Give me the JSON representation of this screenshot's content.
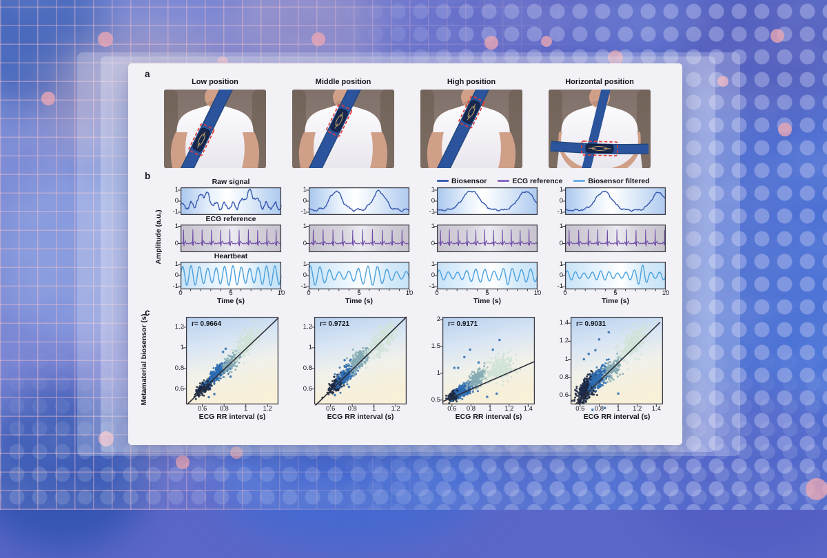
{
  "figure": {
    "panel_a": {
      "label": "a",
      "photos": [
        {
          "title": "Low position",
          "belt": "sash",
          "sensor_t": 0.63
        },
        {
          "title": "Middle position",
          "belt": "sash",
          "sensor_t": 0.4
        },
        {
          "title": "High position",
          "belt": "sash",
          "sensor_t": 0.3
        },
        {
          "title": "Horizontal position",
          "belt": "lap",
          "sensor_t": 0.5
        }
      ]
    },
    "panel_b": {
      "label": "b"
    },
    "panel_c": {
      "label": "c"
    }
  },
  "chart_data": {
    "signal_panels": {
      "type": "line",
      "xlabel": "Time (s)",
      "ylabel": "Amplitude (a.u.)",
      "xticks": [
        "0",
        "5",
        "10"
      ],
      "xtick_vals": [
        0,
        5,
        10
      ],
      "x_range": [
        0,
        10
      ],
      "legend": [
        {
          "name": "Biosensor",
          "color": "#3f5db4"
        },
        {
          "name": "ECG reference",
          "color": "#8a68c0"
        },
        {
          "name": "Biosensor filtered",
          "color": "#69b0e0"
        }
      ],
      "rows": [
        {
          "title": "Raw signal",
          "line_color": "#3456ae",
          "bg": "raw",
          "yticks": [
            "1",
            "0",
            "-1"
          ],
          "ytick_vals": [
            1,
            0,
            -1
          ],
          "y_range": [
            -1.25,
            1.25
          ]
        },
        {
          "title": "ECG reference",
          "line_color": "#6b4aa6",
          "bg": "ecg",
          "yticks": [
            "1",
            "0"
          ],
          "ytick_vals": [
            1,
            0
          ],
          "y_range": [
            -0.5,
            1.1
          ]
        },
        {
          "title": "Heartbeat",
          "line_color": "#4aa0dc",
          "bg": "hb",
          "yticks": [
            "1",
            "0",
            "-1"
          ],
          "ytick_vals": [
            1,
            0,
            -1
          ],
          "y_range": [
            -1.25,
            1.25
          ]
        }
      ],
      "columns": [
        {
          "name": "Low position",
          "raw": {
            "base": -0.45,
            "bumps": [
              {
                "t": 2.35,
                "a": 1.15,
                "w": 0.5
              },
              {
                "t": 6.9,
                "a": 1.2,
                "w": 0.55
              }
            ],
            "ripple": {
              "f": 1.2,
              "a": 0.3,
              "ph": 0
            },
            "noise": 0.12
          },
          "ecg": {
            "rr": 0.92,
            "t0": 0.3,
            "r_amp": 0.8
          },
          "hb": {
            "f": 1.2,
            "a0": 0.78,
            "am": 0.12,
            "mf": 0.25,
            "mp": 0,
            "ph": 0
          }
        },
        {
          "name": "Middle position",
          "raw": {
            "base": -0.8,
            "bumps": [
              {
                "t": 2.7,
                "a": 1.7,
                "w": 0.6
              },
              {
                "t": 7.0,
                "a": 1.7,
                "w": 0.62
              }
            ],
            "ripple": {
              "f": 1.05,
              "a": 0.1,
              "ph": 0.5
            },
            "noise": 0.05
          },
          "ecg": {
            "rr": 0.98,
            "t0": 0.45,
            "r_amp": 0.8
          },
          "hb": {
            "f": 1.05,
            "a0": 0.6,
            "am": 0.28,
            "mf": 0.17,
            "mp": 1.2,
            "ph": 0.5
          }
        },
        {
          "name": "High position",
          "raw": {
            "base": -0.82,
            "bumps": [
              {
                "t": 3.4,
                "a": 1.75,
                "w": 0.85
              },
              {
                "t": 8.85,
                "a": 1.7,
                "w": 0.8
              }
            ],
            "ripple": {
              "f": 1.1,
              "a": 0.05,
              "ph": 0
            },
            "noise": 0.05
          },
          "ecg": {
            "rr": 0.88,
            "t0": 0.35,
            "r_amp": 0.8
          },
          "hb": {
            "f": 1.1,
            "a0": 0.45,
            "am": 0.15,
            "mf": 0.2,
            "mp": 2.6,
            "ph": 0,
            "burst": {
              "t": 7.0,
              "a": 0.5,
              "w": 0.45
            }
          }
        },
        {
          "name": "Horizontal position",
          "raw": {
            "base": -0.82,
            "bumps": [
              {
                "t": 3.85,
                "a": 1.7,
                "w": 0.8
              },
              {
                "t": 9.3,
                "a": 1.6,
                "w": 0.7
              }
            ],
            "ripple": {
              "f": 1.0,
              "a": 0.06,
              "ph": 1.0
            },
            "noise": 0.05
          },
          "ecg": {
            "rr": 0.95,
            "t0": 0.4,
            "r_amp": 0.8
          },
          "hb": {
            "f": 1.2,
            "a0": 0.33,
            "am": 0.1,
            "mf": 0.3,
            "mp": 1.0,
            "ph": 0,
            "burst": {
              "t": 7.7,
              "a": 0.6,
              "w": 0.4
            }
          }
        }
      ]
    },
    "scatter_panels": {
      "type": "scatter",
      "xlabel": "ECG RR interval (s)",
      "ylabel": "Metamaterial biosensor (s)",
      "cluster_colors": [
        "#1b2a47",
        "#2e6cb0",
        "#85abb4",
        "#cfe2d6"
      ],
      "line_color": "#2e2e38",
      "plots": [
        {
          "r_text": "r= 0.9664",
          "r": 0.9664,
          "seed": 101,
          "x_range": [
            0.45,
            1.3
          ],
          "y_range": [
            0.45,
            1.3
          ],
          "xticks": [
            "0.6",
            "0.8",
            "1",
            "1.2"
          ],
          "xtick_vals": [
            0.6,
            0.8,
            1,
            1.2
          ],
          "yticks": [
            "0.6",
            "0.8",
            "1",
            "1.2"
          ],
          "ytick_vals": [
            0.6,
            0.8,
            1,
            1.2
          ],
          "line": [
            [
              0.46,
              0.45
            ],
            [
              1.3,
              1.29
            ]
          ],
          "clusters": [
            {
              "cx": 0.63,
              "cy": 0.63,
              "sx": 0.042,
              "sy": 0.028,
              "k": 0.75,
              "n": 210
            },
            {
              "cx": 0.755,
              "cy": 0.77,
              "sx": 0.05,
              "sy": 0.038,
              "k": 0.7,
              "n": 240
            },
            {
              "cx": 0.865,
              "cy": 0.86,
              "sx": 0.042,
              "sy": 0.038,
              "k": 0.7,
              "n": 150
            },
            {
              "cx": 1.005,
              "cy": 1.04,
              "sx": 0.055,
              "sy": 0.055,
              "k": 0.75,
              "n": 210
            }
          ],
          "outliers": [
            [
              0.79,
              0.96
            ],
            [
              0.815,
              0.99
            ],
            [
              0.66,
              0.52
            ],
            [
              0.71,
              0.55
            ],
            [
              0.86,
              0.72
            ]
          ]
        },
        {
          "r_text": "r= 0.9721",
          "r": 0.9721,
          "seed": 102,
          "x_range": [
            0.45,
            1.3
          ],
          "y_range": [
            0.45,
            1.3
          ],
          "xticks": [
            "0.6",
            "0.8",
            "1",
            "1.2"
          ],
          "xtick_vals": [
            0.6,
            0.8,
            1,
            1.2
          ],
          "yticks": [
            "0.6",
            "0.8",
            "1",
            "1.2"
          ],
          "ytick_vals": [
            0.6,
            0.8,
            1,
            1.2
          ],
          "line": [
            [
              0.46,
              0.44
            ],
            [
              1.3,
              1.3
            ]
          ],
          "clusters": [
            {
              "cx": 0.665,
              "cy": 0.655,
              "sx": 0.038,
              "sy": 0.03,
              "k": 0.8,
              "n": 300
            },
            {
              "cx": 0.745,
              "cy": 0.735,
              "sx": 0.045,
              "sy": 0.042,
              "k": 0.75,
              "n": 210
            },
            {
              "cx": 0.855,
              "cy": 0.875,
              "sx": 0.05,
              "sy": 0.05,
              "k": 0.8,
              "n": 190
            },
            {
              "cx": 1.08,
              "cy": 1.075,
              "sx": 0.07,
              "sy": 0.06,
              "k": 0.8,
              "n": 240
            }
          ],
          "outliers": [
            [
              0.64,
              0.54
            ],
            [
              0.77,
              0.62
            ],
            [
              0.73,
              0.88
            ]
          ]
        },
        {
          "r_text": "r= 0.9171",
          "r": 0.9171,
          "seed": 103,
          "x_range": [
            0.5,
            1.47
          ],
          "y_range": [
            0.42,
            2.05
          ],
          "xticks": [
            "0.6",
            "0.8",
            "1",
            "1.2",
            "1.4"
          ],
          "xtick_vals": [
            0.6,
            0.8,
            1,
            1.2,
            1.4
          ],
          "yticks": [
            "0.5",
            "1",
            "1.5",
            "2"
          ],
          "ytick_vals": [
            0.5,
            1,
            1.5,
            2
          ],
          "line": [
            [
              0.5,
              0.47
            ],
            [
              1.47,
              1.22
            ]
          ],
          "clusters": [
            {
              "cx": 0.635,
              "cy": 0.6,
              "sx": 0.032,
              "sy": 0.045,
              "k": 0.9,
              "n": 240
            },
            {
              "cx": 0.73,
              "cy": 0.685,
              "sx": 0.045,
              "sy": 0.055,
              "k": 0.8,
              "n": 210
            },
            {
              "cx": 0.865,
              "cy": 0.905,
              "sx": 0.05,
              "sy": 0.08,
              "k": 0.9,
              "n": 190
            },
            {
              "cx": 1.11,
              "cy": 1.1,
              "sx": 0.08,
              "sy": 0.11,
              "k": 0.6,
              "n": 290
            }
          ],
          "outliers": [
            [
              0.625,
              1.1
            ],
            [
              0.665,
              1.1
            ],
            [
              0.79,
              1.44
            ],
            [
              0.73,
              1.3
            ],
            [
              0.88,
              1.2
            ],
            [
              1.03,
              1.44
            ],
            [
              0.97,
              0.56
            ],
            [
              1.07,
              0.62
            ],
            [
              1.1,
              1.62
            ]
          ]
        },
        {
          "r_text": "r= 0.9031",
          "r": 0.9031,
          "seed": 104,
          "x_range": [
            0.5,
            1.47
          ],
          "y_range": [
            0.5,
            1.47
          ],
          "xticks": [
            "0.6",
            "0.8",
            "1",
            "1.2",
            "1.4"
          ],
          "xtick_vals": [
            0.6,
            0.8,
            1,
            1.2,
            1.4
          ],
          "yticks": [
            "0.6",
            "0.8",
            "1",
            "1.2",
            "1.4"
          ],
          "ytick_vals": [
            0.6,
            0.8,
            1,
            1.2,
            1.4
          ],
          "line": [
            [
              0.55,
              0.5
            ],
            [
              1.44,
              1.41
            ]
          ],
          "clusters": [
            {
              "cx": 0.665,
              "cy": 0.675,
              "sx": 0.055,
              "sy": 0.065,
              "k": 0.85,
              "n": 340
            },
            {
              "cx": 0.8,
              "cy": 0.8,
              "sx": 0.05,
              "sy": 0.055,
              "k": 0.8,
              "n": 220
            },
            {
              "cx": 0.945,
              "cy": 0.9,
              "sx": 0.05,
              "sy": 0.05,
              "k": 0.8,
              "n": 140
            },
            {
              "cx": 1.15,
              "cy": 1.18,
              "sx": 0.07,
              "sy": 0.075,
              "k": 0.8,
              "n": 260
            }
          ],
          "outliers": [
            [
              0.8,
              1.22
            ],
            [
              0.76,
              1.1
            ],
            [
              0.69,
              1.06
            ],
            [
              0.86,
              0.46
            ],
            [
              0.9,
              1.3
            ],
            [
              0.64,
              1.0
            ],
            [
              0.73,
              0.44
            ],
            [
              1.0,
              0.62
            ]
          ]
        }
      ]
    }
  }
}
